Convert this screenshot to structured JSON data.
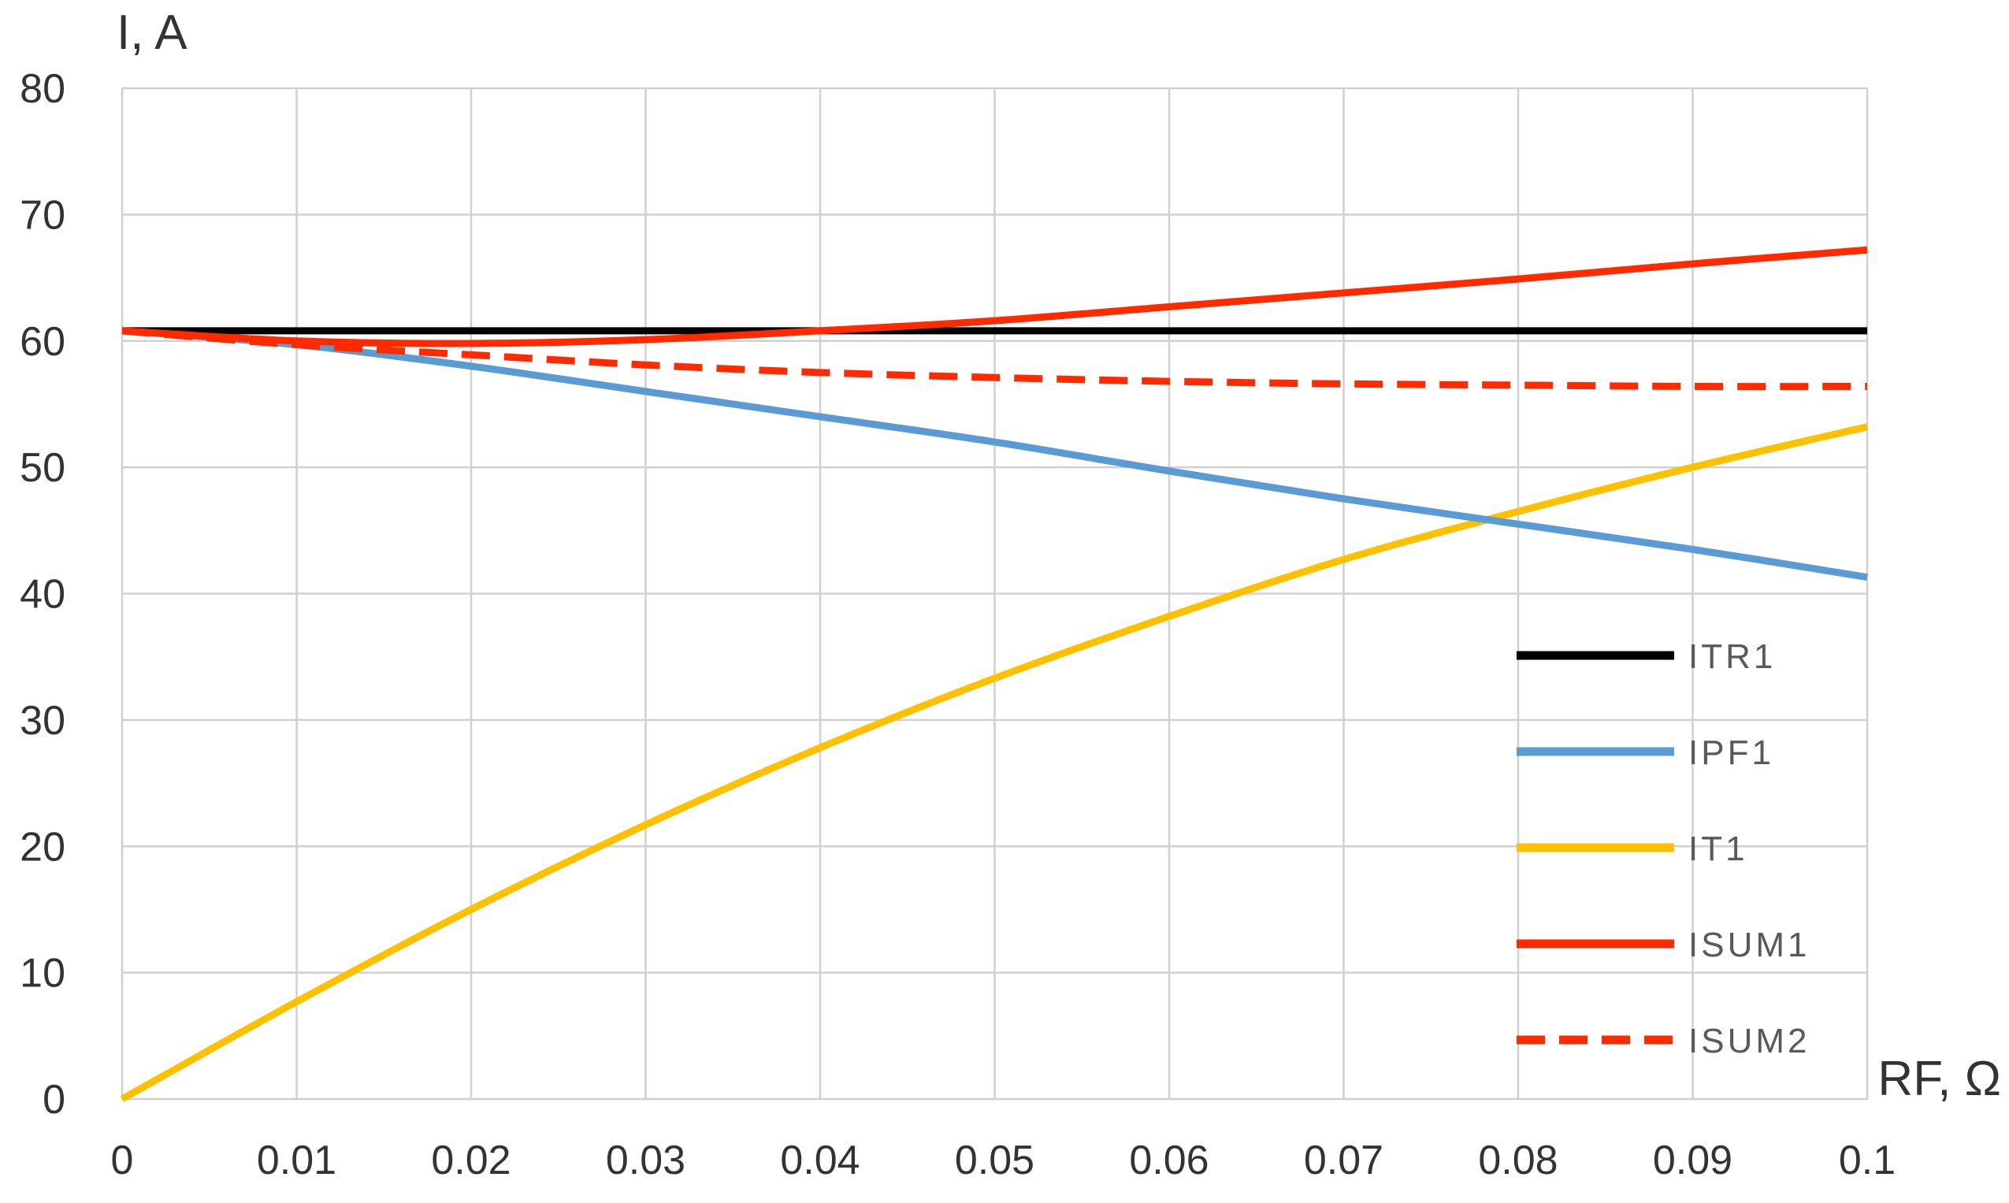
{
  "chart_data": {
    "type": "line",
    "title": "",
    "xlabel": "RF, Ω",
    "ylabel": "I, A",
    "xlim": [
      0,
      0.1
    ],
    "ylim": [
      0,
      80
    ],
    "x_ticks": [
      "0",
      "0.01",
      "0.02",
      "0.03",
      "0.04",
      "0.05",
      "0.06",
      "0.07",
      "0.08",
      "0.09",
      "0.1"
    ],
    "y_ticks": [
      "0",
      "10",
      "20",
      "30",
      "40",
      "50",
      "60",
      "70",
      "80"
    ],
    "grid": true,
    "legend_position": "right",
    "x": [
      0,
      0.01,
      0.02,
      0.03,
      0.04,
      0.05,
      0.06,
      0.07,
      0.08,
      0.09,
      0.1
    ],
    "series": [
      {
        "name": "ITR1",
        "color": "#000000",
        "dash": "solid",
        "values": [
          60.8,
          60.8,
          60.8,
          60.8,
          60.8,
          60.8,
          60.8,
          60.8,
          60.8,
          60.8,
          60.8
        ]
      },
      {
        "name": "IPF1",
        "color": "#5b9bd5",
        "dash": "solid",
        "values": [
          60.8,
          59.7,
          58.0,
          56.0,
          54.0,
          52.0,
          49.7,
          47.5,
          45.5,
          43.5,
          41.3
        ]
      },
      {
        "name": "IT1",
        "color": "#ffc000",
        "dash": "solid",
        "values": [
          0,
          7.7,
          15.0,
          21.7,
          27.8,
          33.3,
          38.2,
          42.7,
          46.5,
          50.0,
          53.2
        ]
      },
      {
        "name": "ISUM1",
        "color": "#ff2a00",
        "dash": "solid",
        "values": [
          60.8,
          60.0,
          59.8,
          60.1,
          60.8,
          61.6,
          62.7,
          63.8,
          64.9,
          66.1,
          67.2
        ]
      },
      {
        "name": "ISUM2",
        "color": "#ff2a00",
        "dash": "dashed",
        "values": [
          60.8,
          59.7,
          58.9,
          58.1,
          57.5,
          57.1,
          56.8,
          56.6,
          56.5,
          56.4,
          56.4
        ]
      }
    ]
  }
}
